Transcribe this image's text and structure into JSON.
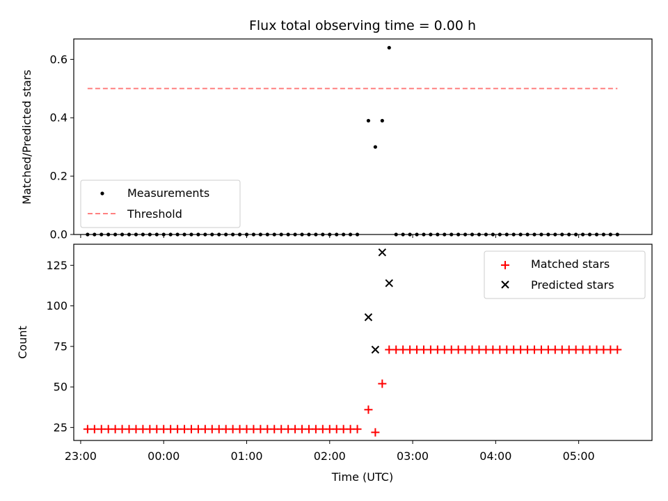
{
  "chart_data": [
    {
      "type": "scatter",
      "title": "Flux total observing time = 0.00 h",
      "xlabel": "",
      "ylabel": "Matched/Predicted stars",
      "ylim": [
        0,
        0.67
      ],
      "yticks": [
        0.0,
        0.2,
        0.4,
        0.6
      ],
      "ytick_labels": [
        "0.0",
        "0.2",
        "0.4",
        "0.6"
      ],
      "legend_placement": "lower-left",
      "series": [
        {
          "name": "Measurements",
          "marker": "dot",
          "color": "#000000",
          "x": [
            "23:05",
            "23:10",
            "23:15",
            "23:20",
            "23:25",
            "23:30",
            "23:35",
            "23:40",
            "23:45",
            "23:50",
            "23:55",
            "00:00",
            "00:05",
            "00:10",
            "00:15",
            "00:20",
            "00:25",
            "00:30",
            "00:35",
            "00:40",
            "00:45",
            "00:50",
            "00:55",
            "01:00",
            "01:05",
            "01:10",
            "01:15",
            "01:20",
            "01:25",
            "01:30",
            "01:35",
            "01:40",
            "01:45",
            "01:50",
            "01:55",
            "02:00",
            "02:05",
            "02:10",
            "02:15",
            "02:20",
            "02:28",
            "02:33",
            "02:38",
            "02:43",
            "02:48",
            "02:53",
            "02:58",
            "03:03",
            "03:08",
            "03:13",
            "03:18",
            "03:23",
            "03:28",
            "03:33",
            "03:38",
            "03:43",
            "03:48",
            "03:53",
            "03:58",
            "04:03",
            "04:08",
            "04:13",
            "04:18",
            "04:23",
            "04:28",
            "04:33",
            "04:38",
            "04:43",
            "04:48",
            "04:53",
            "04:58",
            "05:03",
            "05:08",
            "05:13",
            "05:18",
            "05:23",
            "05:28"
          ],
          "y": [
            0,
            0,
            0,
            0,
            0,
            0,
            0,
            0,
            0,
            0,
            0,
            0,
            0,
            0,
            0,
            0,
            0,
            0,
            0,
            0,
            0,
            0,
            0,
            0,
            0,
            0,
            0,
            0,
            0,
            0,
            0,
            0,
            0,
            0,
            0,
            0,
            0,
            0,
            0,
            0,
            0.39,
            0.3,
            0.39,
            0.64,
            0,
            0,
            0,
            0,
            0,
            0,
            0,
            0,
            0,
            0,
            0,
            0,
            0,
            0,
            0,
            0,
            0,
            0,
            0,
            0,
            0,
            0,
            0,
            0,
            0,
            0,
            0,
            0,
            0,
            0,
            0,
            0,
            0
          ]
        },
        {
          "name": "Threshold",
          "style": "dashed-line",
          "color": "#ff8080",
          "x": [
            "23:05",
            "05:28"
          ],
          "y": [
            0.5,
            0.5
          ]
        }
      ]
    },
    {
      "type": "scatter",
      "title": "",
      "xlabel": "Time (UTC)",
      "ylabel": "Count",
      "ylim": [
        17,
        138
      ],
      "yticks": [
        25,
        50,
        75,
        100,
        125
      ],
      "ytick_labels": [
        "25",
        "50",
        "75",
        "100",
        "125"
      ],
      "xlim": [
        "22:55",
        "05:53"
      ],
      "xticks": [
        "23:00",
        "00:00",
        "01:00",
        "02:00",
        "03:00",
        "04:00",
        "05:00"
      ],
      "xtick_labels": [
        "23:00",
        "00:00",
        "01:00",
        "02:00",
        "03:00",
        "04:00",
        "05:00"
      ],
      "legend_placement": "upper-right",
      "series": [
        {
          "name": "Matched stars",
          "marker": "plus",
          "color": "#ff0000",
          "x": [
            "23:05",
            "23:10",
            "23:15",
            "23:20",
            "23:25",
            "23:30",
            "23:35",
            "23:40",
            "23:45",
            "23:50",
            "23:55",
            "00:00",
            "00:05",
            "00:10",
            "00:15",
            "00:20",
            "00:25",
            "00:30",
            "00:35",
            "00:40",
            "00:45",
            "00:50",
            "00:55",
            "01:00",
            "01:05",
            "01:10",
            "01:15",
            "01:20",
            "01:25",
            "01:30",
            "01:35",
            "01:40",
            "01:45",
            "01:50",
            "01:55",
            "02:00",
            "02:05",
            "02:10",
            "02:15",
            "02:20",
            "02:28",
            "02:33",
            "02:38",
            "02:43",
            "02:48",
            "02:53",
            "02:58",
            "03:03",
            "03:08",
            "03:13",
            "03:18",
            "03:23",
            "03:28",
            "03:33",
            "03:38",
            "03:43",
            "03:48",
            "03:53",
            "03:58",
            "04:03",
            "04:08",
            "04:13",
            "04:18",
            "04:23",
            "04:28",
            "04:33",
            "04:38",
            "04:43",
            "04:48",
            "04:53",
            "04:58",
            "05:03",
            "05:08",
            "05:13",
            "05:18",
            "05:23",
            "05:28"
          ],
          "y": [
            24,
            24,
            24,
            24,
            24,
            24,
            24,
            24,
            24,
            24,
            24,
            24,
            24,
            24,
            24,
            24,
            24,
            24,
            24,
            24,
            24,
            24,
            24,
            24,
            24,
            24,
            24,
            24,
            24,
            24,
            24,
            24,
            24,
            24,
            24,
            24,
            24,
            24,
            24,
            24,
            36,
            22,
            52,
            73,
            73,
            73,
            73,
            73,
            73,
            73,
            73,
            73,
            73,
            73,
            73,
            73,
            73,
            73,
            73,
            73,
            73,
            73,
            73,
            73,
            73,
            73,
            73,
            73,
            73,
            73,
            73,
            73,
            73,
            73,
            73,
            73,
            73
          ]
        },
        {
          "name": "Predicted stars",
          "marker": "x",
          "color": "#000000",
          "x": [
            "02:28",
            "02:33",
            "02:38",
            "02:43"
          ],
          "y": [
            93,
            73,
            133,
            114
          ]
        }
      ]
    }
  ]
}
